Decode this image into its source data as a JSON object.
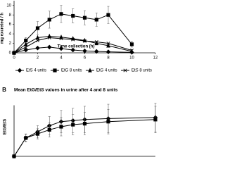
{
  "chart_data": [
    {
      "type": "line",
      "y_label": "mg excreted / h",
      "x_label": "Time collection (h)",
      "xlim": [
        0,
        12
      ],
      "xticks": [
        0,
        2,
        4,
        6,
        8,
        10,
        12
      ],
      "ylim": [
        0,
        11
      ],
      "yticks": [
        0,
        2,
        4,
        6,
        8,
        10
      ],
      "x": [
        0,
        1,
        2,
        3,
        4,
        5,
        6,
        7,
        8,
        10
      ],
      "series": [
        {
          "name": "EtS 4 units",
          "color": "#000000",
          "marker": "diamond",
          "values": [
            0,
            0.6,
            1.0,
            1.2,
            0.9,
            0.6,
            0.4,
            0.3,
            0.2,
            0.1
          ]
        },
        {
          "name": "EtG 8 units",
          "color": "#000000",
          "marker": "square",
          "values": [
            0,
            2.6,
            5.2,
            7.0,
            8.2,
            7.8,
            7.4,
            7.0,
            8.0,
            1.8
          ],
          "errors": [
            0,
            0.6,
            1.4,
            1.8,
            1.8,
            1.5,
            1.5,
            1.4,
            1.8,
            0.6
          ]
        },
        {
          "name": "EtG 4 units",
          "color": "#000000",
          "marker": "triangle",
          "values": [
            0,
            1.8,
            3.2,
            3.5,
            3.3,
            3.0,
            2.6,
            2.0,
            1.5,
            0.3
          ]
        },
        {
          "name": "EtS 8 units",
          "color": "#000000",
          "marker": "x",
          "values": [
            0,
            1.2,
            2.6,
            3.2,
            3.0,
            2.8,
            2.5,
            2.3,
            2.0,
            0.5
          ]
        }
      ]
    },
    {
      "type": "line",
      "panel": "B",
      "title": "Mean EtG/EtS values in urine after 4 and 8 units",
      "y_label": "EtG/EtS",
      "xlim": [
        0,
        12
      ],
      "ylim": [
        0,
        5
      ],
      "x": [
        0,
        1,
        2,
        3,
        4,
        5,
        6,
        8,
        12
      ],
      "series": [
        {
          "color": "#000000",
          "marker": "diamond",
          "values": [
            0,
            1.8,
            2.4,
            3.0,
            3.4,
            3.5,
            3.6,
            3.7,
            3.8
          ],
          "errors": [
            0,
            0.4,
            0.6,
            0.9,
            1.1,
            1.2,
            1.3,
            1.4,
            1.4
          ]
        },
        {
          "color": "#000000",
          "marker": "square",
          "values": [
            0,
            1.8,
            2.2,
            2.6,
            2.9,
            3.1,
            3.2,
            3.4,
            3.6
          ],
          "errors": [
            0,
            0.3,
            0.5,
            0.7,
            0.9,
            1.0,
            1.1,
            1.2,
            1.3
          ]
        }
      ]
    }
  ]
}
